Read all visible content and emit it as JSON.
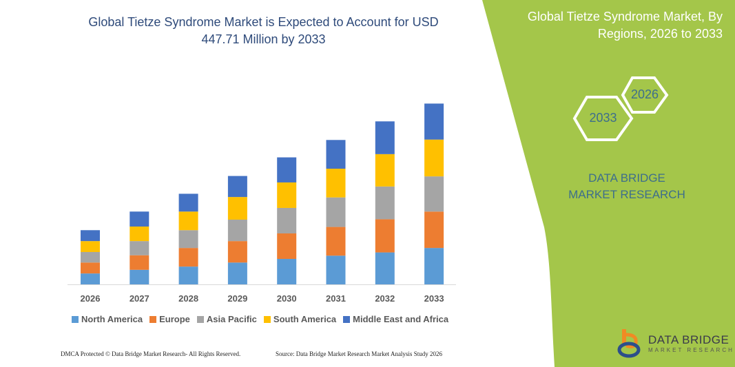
{
  "chart_data": {
    "type": "bar",
    "stacked": true,
    "title": "Global Tietze Syndrome Market is Expected to Account for USD 447.71 Million by 2033",
    "categories": [
      "2026",
      "2027",
      "2028",
      "2029",
      "2030",
      "2031",
      "2032",
      "2033"
    ],
    "series": [
      {
        "name": "North America",
        "color": "#5b9bd5",
        "values": [
          27,
          36,
          44,
          54,
          63,
          71,
          79,
          90
        ]
      },
      {
        "name": "Europe",
        "color": "#ed7d31",
        "values": [
          27,
          36,
          46,
          53,
          63,
          71,
          82,
          90
        ]
      },
      {
        "name": "Asia Pacific",
        "color": "#a5a5a5",
        "values": [
          26,
          35,
          44,
          53,
          63,
          73,
          81,
          87
        ]
      },
      {
        "name": "South America",
        "color": "#ffc000",
        "values": [
          27,
          36,
          46,
          56,
          63,
          71,
          80,
          91
        ]
      },
      {
        "name": "Middle East and Africa",
        "color": "#4472c4",
        "values": [
          27,
          37,
          44,
          52,
          62,
          71,
          81,
          89
        ]
      }
    ],
    "ylim": [
      0,
      447.71
    ],
    "grid": false,
    "legend_position": "bottom"
  },
  "side": {
    "title": "Global Tietze Syndrome Market, By Regions, 2026 to 2033",
    "hex_start": "2026",
    "hex_end": "2033",
    "brand": "DATA BRIDGE MARKET RESEARCH",
    "accent": "#a4c64a"
  },
  "footer": {
    "dmca": "DMCA Protected © Data Bridge Market Research- All Rights Reserved.",
    "source": "Source: Data Bridge Market Research Market Analysis Study 2026"
  },
  "logo": {
    "name": "DATA BRIDGE",
    "tagline": "MARKET RESEARCH"
  }
}
